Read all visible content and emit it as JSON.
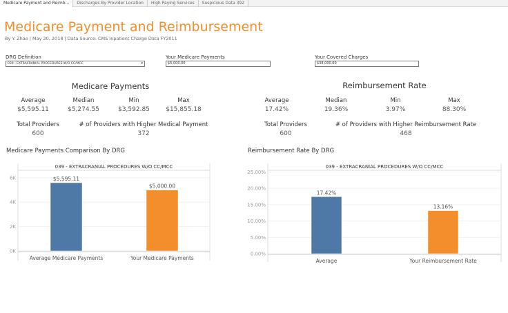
{
  "tabs": [
    "Medicare Payment and Reimb...",
    "Discharges By Provider Location",
    "High Paying Services",
    "Suspicious Data 392"
  ],
  "header": {
    "title": "Medicare Payment and Reimbursement",
    "subtitle": "By Y. Zhao  |  May 20, 2018  |  Data Source: CMS Inpatient Charge Data FY2011"
  },
  "filters": {
    "drg": {
      "label": "DRG Definition",
      "value": "039 - EXTRACRANIAL PROCEDURES W/O CC/MCC"
    },
    "payments": {
      "label": "Your Medicare Payments",
      "value": "$5,000.00"
    },
    "charges": {
      "label": "Your Covered Charges",
      "value": "$38,000.00"
    }
  },
  "medicare": {
    "title": "Medicare Payments",
    "stats": [
      {
        "label": "Average",
        "value": "$5,595.11"
      },
      {
        "label": "Median",
        "value": "$5,274.55"
      },
      {
        "label": "Min",
        "value": "$3,592.85"
      },
      {
        "label": "Max",
        "value": "$15,855.18"
      }
    ],
    "providers_label": "Total Providers",
    "providers": "600",
    "higher_label": "# of Providers with Higher Medical Payment",
    "higher": "372"
  },
  "reimb": {
    "title": "Reimbursement Rate",
    "stats": [
      {
        "label": "Average",
        "value": "17.42%"
      },
      {
        "label": "Median",
        "value": "19.36%"
      },
      {
        "label": "Min",
        "value": "3.97%"
      },
      {
        "label": "Max",
        "value": "88.30%"
      }
    ],
    "providers_label": "Total Providers",
    "providers": "600",
    "higher_label": "# of Providers with Higher Reimbursement Rate",
    "higher": "468"
  },
  "colors": {
    "blue": "#4e79a7",
    "orange": "#f28e2b"
  },
  "chart_data": [
    {
      "type": "bar",
      "title": "Medicare Payments Comparison By DRG",
      "header": "039 - EXTRACRANIAL PROCEDURES W/O CC/MCC",
      "categories": [
        "Average Medicare Payments",
        "Your Medicare Payments"
      ],
      "values": [
        5595.11,
        5000
      ],
      "data_labels": [
        "$5,595.11",
        "$5,000.00"
      ],
      "ylim": [
        0,
        6500
      ],
      "yticks": [
        0,
        2000,
        4000,
        6000
      ],
      "ytick_labels": [
        "0K",
        "2K",
        "4K",
        "6K"
      ],
      "grid": true
    },
    {
      "type": "bar",
      "title": "Reimbursement Rate By DRG",
      "header": "039 - EXTRACRANIAL PROCEDURES W/O CC/MCC",
      "categories": [
        "Average",
        "Your Reimbursement Rate"
      ],
      "values": [
        17.42,
        13.16
      ],
      "data_labels": [
        "17.42%",
        "13.16%"
      ],
      "ylim": [
        0,
        25.5
      ],
      "yticks": [
        0,
        5,
        10,
        15,
        20,
        25
      ],
      "ytick_labels": [
        "0.00%",
        "5.00%",
        "10.00%",
        "15.00%",
        "20.00%",
        "25.00%"
      ],
      "grid": true
    }
  ]
}
